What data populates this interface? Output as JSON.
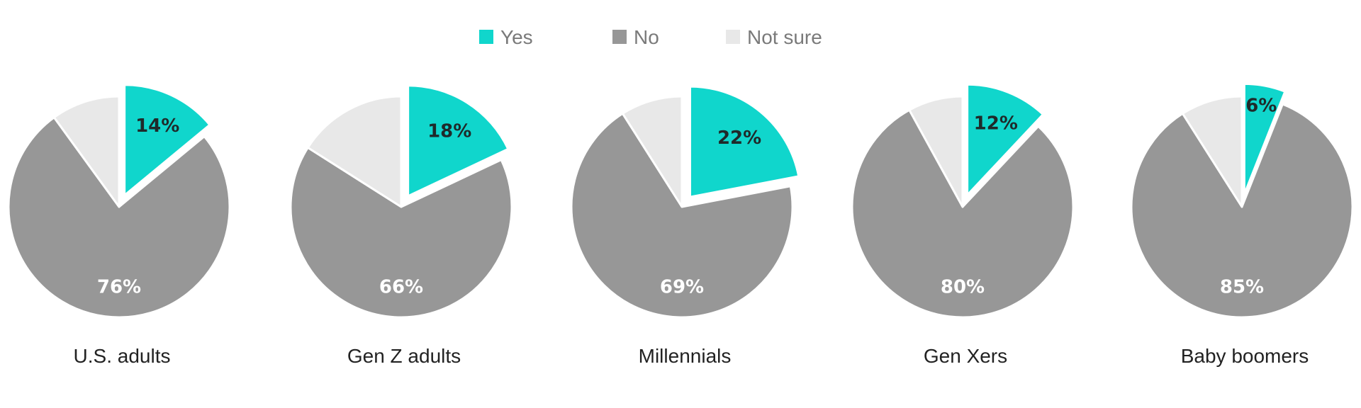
{
  "chart_data": {
    "type": "pie",
    "legend_position": "top-center",
    "legend": [
      {
        "label": "Yes",
        "color": "#10d6cc"
      },
      {
        "label": "No",
        "color": "#979797"
      },
      {
        "label": "Not sure",
        "color": "#e8e8e8"
      }
    ],
    "categories": [
      "Yes",
      "No",
      "Not sure"
    ],
    "exploded_slice": "Yes",
    "charts": [
      {
        "name": "U.S. adults",
        "values": [
          14,
          76,
          10
        ],
        "labels": [
          "14%",
          "76%",
          ""
        ]
      },
      {
        "name": "Gen Z adults",
        "values": [
          18,
          66,
          16
        ],
        "labels": [
          "18%",
          "66%",
          ""
        ]
      },
      {
        "name": "Millennials",
        "values": [
          22,
          69,
          9
        ],
        "labels": [
          "22%",
          "69%",
          ""
        ]
      },
      {
        "name": "Gen Xers",
        "values": [
          12,
          80,
          8
        ],
        "labels": [
          "12%",
          "80%",
          ""
        ]
      },
      {
        "name": "Baby boomers",
        "values": [
          6,
          85,
          9
        ],
        "labels": [
          "6%",
          "85%",
          ""
        ]
      }
    ]
  }
}
